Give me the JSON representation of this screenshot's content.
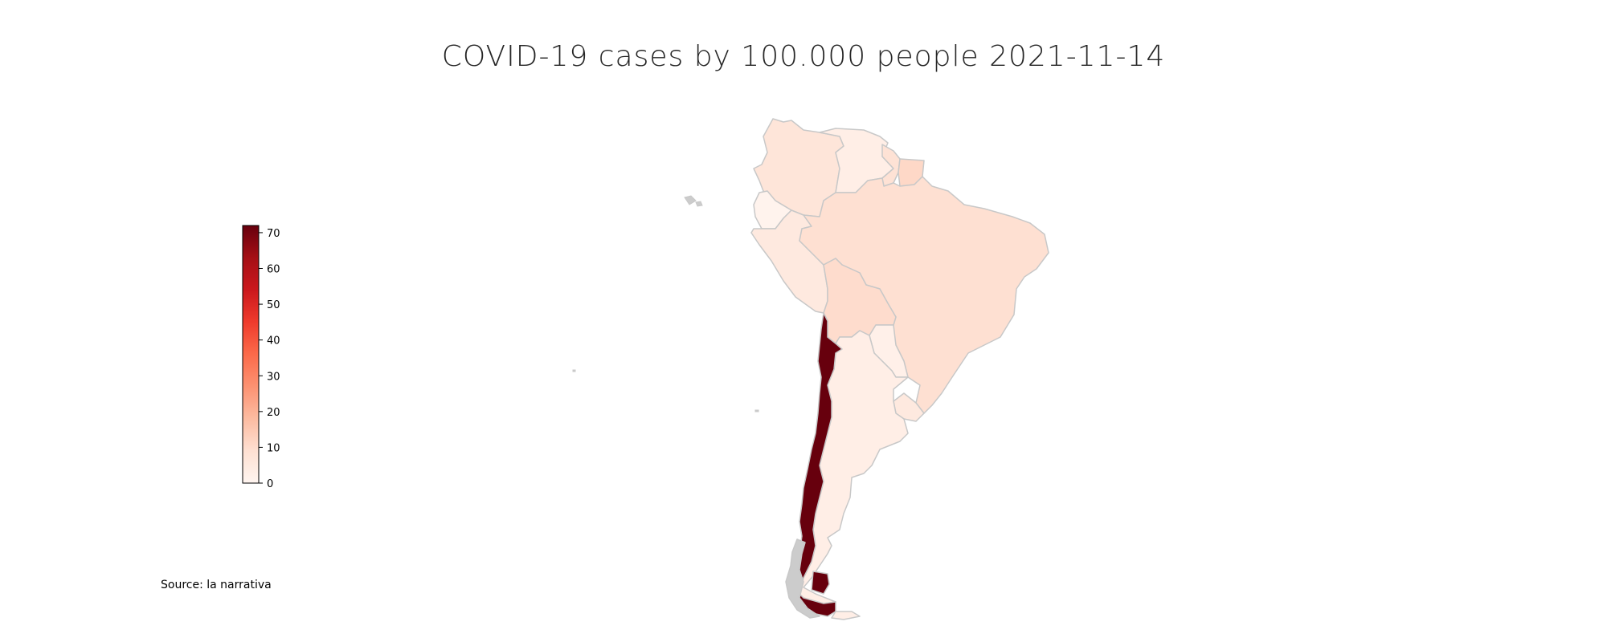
{
  "title": "COVID-19 cases by 100.000 people 2021-11-14",
  "source": "Source: la narrativa",
  "colorbar": {
    "colormap": "Reds",
    "min": 0,
    "max": 72,
    "ticks": [
      "0",
      "10",
      "20",
      "30",
      "40",
      "50",
      "60",
      "70"
    ],
    "tick_values": [
      0,
      10,
      20,
      30,
      40,
      50,
      60,
      70
    ]
  },
  "colors": {
    "no_data": "#cccccc",
    "border": "#c8c8c8",
    "scale_low": "#fff5f0",
    "scale_high": "#67000d"
  },
  "countries": [
    {
      "name": "Colombia",
      "value": 7
    },
    {
      "name": "Venezuela",
      "value": 3
    },
    {
      "name": "Guyana",
      "value": 8
    },
    {
      "name": "Suriname",
      "value": 11
    },
    {
      "name": "Ecuador",
      "value": 1
    },
    {
      "name": "Peru",
      "value": 5
    },
    {
      "name": "Brazil",
      "value": 9
    },
    {
      "name": "Bolivia",
      "value": 10
    },
    {
      "name": "Paraguay",
      "value": 2
    },
    {
      "name": "Uruguay",
      "value": 5
    },
    {
      "name": "Argentina",
      "value": 3
    },
    {
      "name": "Chile",
      "value": 72
    },
    {
      "name": "Falkland Islands",
      "value": null
    }
  ]
}
